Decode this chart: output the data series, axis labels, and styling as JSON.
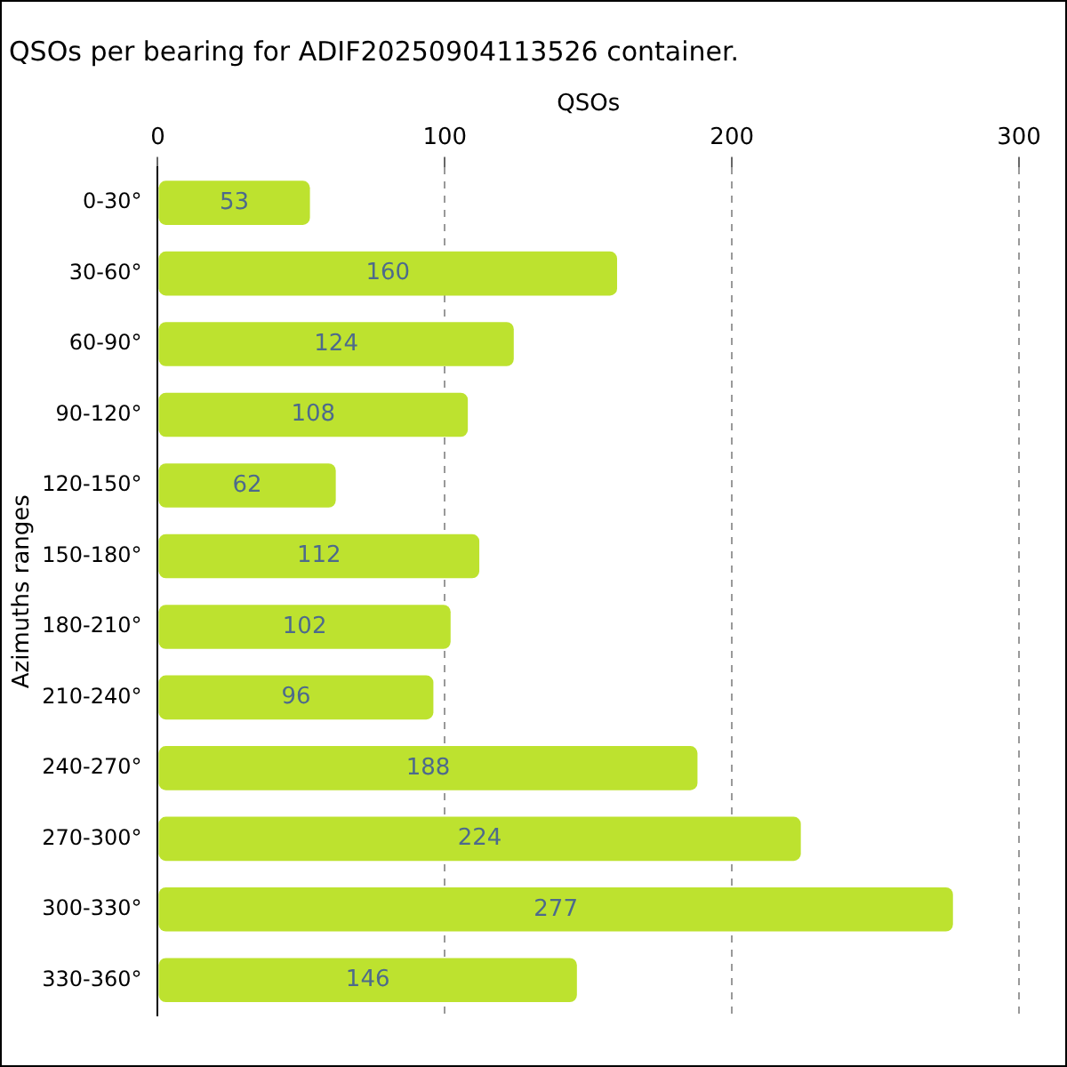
{
  "chart_data": {
    "type": "bar",
    "orientation": "horizontal",
    "title": "QSOs per bearing for ADIF20250904113526 container.",
    "xlabel": "QSOs",
    "ylabel": "Azimuths ranges",
    "categories": [
      "0-30°",
      "30-60°",
      "60-90°",
      "90-120°",
      "120-150°",
      "150-180°",
      "180-210°",
      "210-240°",
      "240-270°",
      "270-300°",
      "300-330°",
      "330-360°"
    ],
    "values": [
      53,
      160,
      124,
      108,
      62,
      112,
      102,
      96,
      188,
      224,
      277,
      146
    ],
    "color": "#bde22f",
    "xlim": [
      0,
      300
    ],
    "xticks": [
      0,
      100,
      200,
      300
    ],
    "grid": "x",
    "data_labels": true,
    "legend": false
  }
}
